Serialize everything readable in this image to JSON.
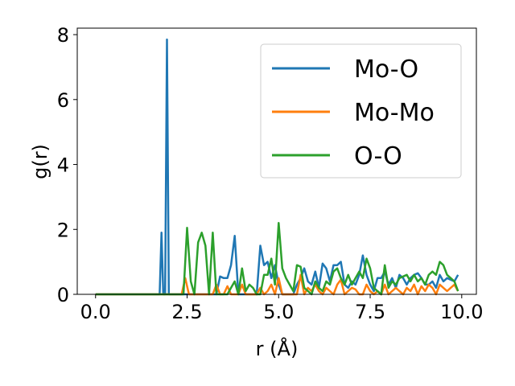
{
  "chart_data": {
    "type": "line",
    "title": "",
    "xlabel": "r (Å)",
    "ylabel": "g(r)",
    "xlim": [
      -0.5,
      10.4
    ],
    "ylim": [
      0,
      8.2
    ],
    "xticks": [
      0.0,
      2.5,
      5.0,
      7.5,
      10.0
    ],
    "xtick_labels": [
      "0.0",
      "2.5",
      "5.0",
      "7.5",
      "10.0"
    ],
    "yticks": [
      0,
      2,
      4,
      6,
      8
    ],
    "ytick_labels": [
      "0",
      "2",
      "4",
      "6",
      "8"
    ],
    "grid": false,
    "legend_position": "top-right",
    "series": [
      {
        "name": "Mo-O",
        "color": "#1f77b4",
        "x": [
          0.0,
          1.6,
          1.75,
          1.8,
          1.85,
          1.9,
          1.95,
          2.0,
          2.05,
          2.1,
          2.15,
          2.4,
          2.6,
          2.7,
          2.8,
          2.9,
          3.0,
          3.1,
          3.2,
          3.3,
          3.4,
          3.5,
          3.6,
          3.7,
          3.8,
          3.9,
          4.0,
          4.1,
          4.2,
          4.3,
          4.4,
          4.5,
          4.6,
          4.7,
          4.8,
          4.9,
          5.0,
          5.1,
          5.2,
          5.3,
          5.4,
          5.5,
          5.6,
          5.7,
          5.8,
          5.9,
          6.0,
          6.1,
          6.2,
          6.3,
          6.4,
          6.5,
          6.6,
          6.7,
          6.8,
          6.9,
          7.0,
          7.1,
          7.2,
          7.3,
          7.4,
          7.5,
          7.6,
          7.7,
          7.8,
          7.9,
          8.0,
          8.1,
          8.2,
          8.3,
          8.4,
          8.5,
          8.6,
          8.7,
          8.8,
          8.9,
          9.0,
          9.1,
          9.2,
          9.3,
          9.4,
          9.5,
          9.6,
          9.7,
          9.8,
          9.9
        ],
        "y": [
          0,
          0,
          0,
          1.9,
          0,
          0,
          7.85,
          0,
          0,
          0,
          0,
          0,
          0,
          0,
          0,
          0,
          0,
          0,
          0,
          0,
          0.55,
          0.5,
          0.5,
          0.9,
          1.8,
          0,
          0,
          0,
          0,
          0,
          0,
          1.5,
          0.9,
          1.0,
          0.5,
          0.9,
          0.3,
          0,
          0,
          0,
          0,
          0.3,
          0.5,
          0.8,
          0.4,
          0.3,
          0.7,
          0.2,
          0.95,
          0.8,
          0.4,
          0.9,
          0.9,
          1.0,
          0.3,
          0.2,
          0.4,
          0.3,
          0.6,
          1.2,
          0.6,
          0.3,
          0.1,
          0.5,
          0.5,
          0.7,
          0.3,
          0.5,
          0.2,
          0.6,
          0.5,
          0.3,
          0.5,
          0.6,
          0.65,
          0.5,
          0.3,
          0.3,
          0.4,
          0.2,
          0.6,
          0.4,
          0.5,
          0.45,
          0.4,
          0.6
        ]
      },
      {
        "name": "Mo-Mo",
        "color": "#ff7f0e",
        "x": [
          0.0,
          2.35,
          2.45,
          2.55,
          2.65,
          3.2,
          3.3,
          3.4,
          3.5,
          3.6,
          3.7,
          3.8,
          3.9,
          4.0,
          4.1,
          4.2,
          4.3,
          4.4,
          4.5,
          4.6,
          4.7,
          4.8,
          4.9,
          5.0,
          5.1,
          5.2,
          5.3,
          5.4,
          5.5,
          5.6,
          5.7,
          5.8,
          5.9,
          6.0,
          6.1,
          6.2,
          6.3,
          6.4,
          6.5,
          6.6,
          6.7,
          6.8,
          6.9,
          7.0,
          7.1,
          7.2,
          7.3,
          7.4,
          7.5,
          7.6,
          7.7,
          7.8,
          7.9,
          8.0,
          8.1,
          8.2,
          8.3,
          8.4,
          8.5,
          8.6,
          8.7,
          8.8,
          8.9,
          9.0,
          9.1,
          9.2,
          9.3,
          9.4,
          9.5,
          9.6,
          9.7,
          9.8,
          9.9
        ],
        "y": [
          0,
          0,
          0.5,
          0,
          0,
          0,
          0.3,
          0,
          0,
          0.25,
          0,
          0,
          0,
          0.3,
          0,
          0,
          0,
          0,
          0.2,
          0,
          0.1,
          0.3,
          0,
          0.5,
          0,
          0,
          0,
          0,
          0,
          0.6,
          0,
          0.2,
          0.1,
          0.3,
          0.1,
          0,
          0.2,
          0.1,
          0,
          0.3,
          0.45,
          0,
          0.1,
          0.2,
          0.15,
          0,
          0,
          0.3,
          0.1,
          0,
          0.1,
          0,
          0.3,
          0,
          0.1,
          0.2,
          0.1,
          0,
          0.2,
          0.1,
          0.3,
          0,
          0.25,
          0.1,
          0.3,
          0.2,
          0,
          0.3,
          0.2,
          0.1,
          0.2,
          0.3,
          0.1
        ]
      },
      {
        "name": "O-O",
        "color": "#2ca02c",
        "x": [
          0.0,
          2.4,
          2.5,
          2.6,
          2.7,
          2.8,
          2.9,
          3.0,
          3.1,
          3.2,
          3.3,
          3.4,
          3.5,
          3.6,
          3.7,
          3.8,
          3.9,
          4.0,
          4.1,
          4.2,
          4.3,
          4.4,
          4.5,
          4.6,
          4.7,
          4.8,
          4.9,
          5.0,
          5.1,
          5.2,
          5.3,
          5.4,
          5.5,
          5.6,
          5.7,
          5.8,
          5.9,
          6.0,
          6.1,
          6.2,
          6.3,
          6.4,
          6.5,
          6.6,
          6.7,
          6.8,
          6.9,
          7.0,
          7.1,
          7.2,
          7.3,
          7.4,
          7.5,
          7.6,
          7.7,
          7.8,
          7.9,
          8.0,
          8.1,
          8.2,
          8.3,
          8.4,
          8.5,
          8.6,
          8.7,
          8.8,
          8.9,
          9.0,
          9.1,
          9.2,
          9.3,
          9.4,
          9.5,
          9.6,
          9.7,
          9.8,
          9.9
        ],
        "y": [
          0,
          0,
          2.05,
          0.4,
          0,
          1.6,
          1.9,
          1.5,
          0,
          1.9,
          0,
          0,
          0,
          0,
          0.2,
          0.4,
          0,
          0.8,
          0.1,
          0.3,
          0.2,
          0,
          0,
          0.6,
          0.6,
          1.1,
          0.3,
          2.2,
          0.8,
          0.5,
          0.3,
          0.1,
          0.9,
          0.85,
          0.2,
          0.1,
          0,
          0.4,
          0.2,
          0.1,
          0.4,
          0.3,
          0.7,
          0.8,
          0.5,
          0.3,
          0.6,
          0.3,
          0.5,
          0.7,
          0.5,
          1.1,
          0.8,
          0.2,
          0.1,
          0,
          0.9,
          0.2,
          0.4,
          0.3,
          0.5,
          0.55,
          0.6,
          0.4,
          0.6,
          0.4,
          0.5,
          0.3,
          0.6,
          0.7,
          0.6,
          1.0,
          0.9,
          0.6,
          0.5,
          0.4,
          0.1
        ]
      }
    ]
  }
}
